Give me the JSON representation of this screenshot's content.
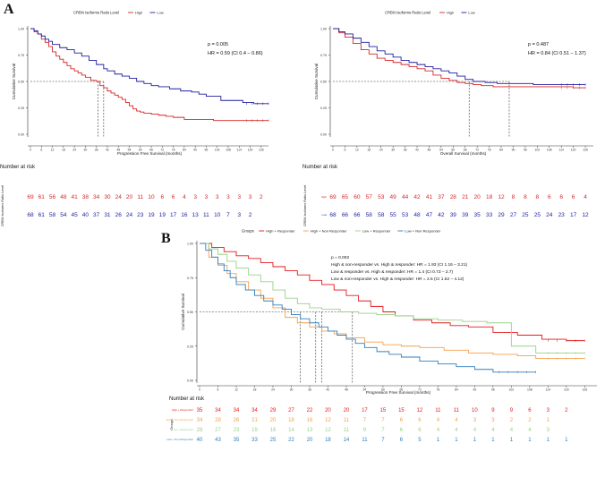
{
  "panels": {
    "a_letter": "A",
    "b_letter": "B"
  },
  "chart_data": [
    {
      "id": "A-left",
      "type": "line",
      "subtype": "kaplan-meier",
      "legend_title": "CRBN Isoforms Ratio Level",
      "legend_position": "top",
      "series": [
        {
          "name": "High",
          "color": "#d62728",
          "x": [
            0,
            2,
            4,
            6,
            8,
            10,
            12,
            14,
            16,
            18,
            20,
            22,
            24,
            26,
            28,
            30,
            33,
            36,
            38,
            40,
            42,
            44,
            46,
            48,
            50,
            52,
            54,
            56,
            58,
            60,
            62,
            66,
            70,
            74,
            78,
            84,
            90,
            100,
            110,
            120,
            126,
            130
          ],
          "y": [
            1.0,
            0.97,
            0.95,
            0.9,
            0.87,
            0.83,
            0.78,
            0.74,
            0.71,
            0.68,
            0.65,
            0.62,
            0.6,
            0.58,
            0.56,
            0.54,
            0.51,
            0.5,
            0.46,
            0.44,
            0.41,
            0.39,
            0.37,
            0.35,
            0.33,
            0.3,
            0.27,
            0.24,
            0.22,
            0.21,
            0.2,
            0.19,
            0.18,
            0.17,
            0.16,
            0.14,
            0.14,
            0.13,
            0.13,
            0.13,
            0.13,
            0.13
          ]
        },
        {
          "name": "Low",
          "color": "#1f1f9e",
          "x": [
            0,
            2,
            4,
            6,
            8,
            10,
            12,
            16,
            20,
            24,
            28,
            32,
            36,
            40,
            42,
            46,
            50,
            54,
            58,
            62,
            66,
            70,
            76,
            82,
            88,
            92,
            96,
            104,
            110,
            116,
            122,
            126,
            130
          ],
          "y": [
            1.0,
            0.98,
            0.95,
            0.93,
            0.9,
            0.88,
            0.85,
            0.82,
            0.8,
            0.77,
            0.74,
            0.7,
            0.66,
            0.62,
            0.6,
            0.57,
            0.55,
            0.53,
            0.5,
            0.48,
            0.46,
            0.45,
            0.43,
            0.41,
            0.4,
            0.38,
            0.36,
            0.32,
            0.32,
            0.3,
            0.29,
            0.29,
            0.29
          ]
        }
      ],
      "annotation": [
        "p = 0.005",
        "HR = 0.59 (CI 0.4 – 0.86)"
      ],
      "medians": [
        37,
        40
      ],
      "xlabel": "Progression Free Survival (months)",
      "ylabel": "Cumulative Survival",
      "xlim": [
        0,
        130
      ],
      "ylim": [
        0,
        1
      ],
      "xticks": [
        0,
        6,
        12,
        18,
        24,
        30,
        36,
        42,
        48,
        54,
        60,
        66,
        72,
        78,
        84,
        90,
        96,
        102,
        108,
        114,
        120,
        126
      ],
      "yticks": [
        "0.00",
        "0.25",
        "0.50",
        "0.75",
        "1.00"
      ],
      "risk_table_title": "Number at risk",
      "risk_ylabel": "CRBN Isoforms Ratio Level",
      "risk_rows": [
        {
          "label": "High",
          "color": "#d62728",
          "values": [
            "69",
            "61",
            "56",
            "48",
            "41",
            "38",
            "34",
            "30",
            "24",
            "20",
            "11",
            "10",
            "6",
            "6",
            "4",
            "3",
            "3",
            "3",
            "3",
            "3",
            "3",
            "2"
          ]
        },
        {
          "label": "Low",
          "color": "#1f1f9e",
          "values": [
            "68",
            "61",
            "58",
            "54",
            "45",
            "40",
            "37",
            "31",
            "26",
            "24",
            "23",
            "19",
            "19",
            "17",
            "16",
            "13",
            "11",
            "10",
            "7",
            "3",
            "2",
            ""
          ]
        }
      ]
    },
    {
      "id": "A-right",
      "type": "line",
      "subtype": "kaplan-meier",
      "legend_title": "CRBN Isoforms Ratio Level",
      "legend_position": "top",
      "series": [
        {
          "name": "High",
          "color": "#d62728",
          "x": [
            0,
            3,
            6,
            10,
            14,
            18,
            22,
            26,
            30,
            34,
            38,
            42,
            46,
            50,
            54,
            58,
            62,
            66,
            70,
            74,
            80,
            90,
            100,
            110,
            120,
            126
          ],
          "y": [
            1.0,
            0.96,
            0.92,
            0.86,
            0.8,
            0.76,
            0.72,
            0.7,
            0.68,
            0.66,
            0.64,
            0.62,
            0.6,
            0.56,
            0.53,
            0.51,
            0.49,
            0.48,
            0.47,
            0.46,
            0.45,
            0.45,
            0.45,
            0.45,
            0.44,
            0.44
          ]
        },
        {
          "name": "Low",
          "color": "#1f1f9e",
          "x": [
            0,
            3,
            6,
            10,
            14,
            18,
            22,
            26,
            30,
            34,
            38,
            42,
            46,
            50,
            54,
            58,
            62,
            66,
            70,
            76,
            82,
            88,
            94,
            100,
            110,
            120,
            126
          ],
          "y": [
            1.0,
            0.97,
            0.95,
            0.91,
            0.87,
            0.83,
            0.79,
            0.76,
            0.73,
            0.7,
            0.68,
            0.66,
            0.64,
            0.62,
            0.6,
            0.58,
            0.55,
            0.52,
            0.5,
            0.49,
            0.48,
            0.48,
            0.48,
            0.47,
            0.47,
            0.47,
            0.47
          ]
        }
      ],
      "annotation": [
        "p = 0.487",
        "HR = 0.84 (CI 0.51 – 1.37)"
      ],
      "medians": [
        68,
        88
      ],
      "xlabel": "Overall Survival (months)",
      "ylabel": "Cumulative Survival",
      "xlim": [
        0,
        130
      ],
      "ylim": [
        0,
        1
      ],
      "xticks": [
        0,
        6,
        12,
        18,
        24,
        30,
        36,
        42,
        48,
        54,
        60,
        66,
        72,
        78,
        84,
        90,
        96,
        102,
        108,
        114,
        120,
        126
      ],
      "yticks": [
        "0.00",
        "0.25",
        "0.50",
        "0.75",
        "1.00"
      ],
      "risk_table_title": "Number at risk",
      "risk_ylabel": "CRBN Isoforms Ratio Level",
      "risk_rows": [
        {
          "label": "High",
          "color": "#d62728",
          "values": [
            "69",
            "65",
            "60",
            "57",
            "53",
            "49",
            "44",
            "42",
            "41",
            "37",
            "28",
            "21",
            "20",
            "18",
            "12",
            "8",
            "8",
            "8",
            "6",
            "6",
            "6",
            "4"
          ]
        },
        {
          "label": "Low",
          "color": "#1f1f9e",
          "values": [
            "68",
            "66",
            "66",
            "58",
            "58",
            "55",
            "53",
            "48",
            "47",
            "42",
            "39",
            "39",
            "35",
            "33",
            "29",
            "27",
            "25",
            "25",
            "24",
            "23",
            "17",
            "12"
          ]
        }
      ]
    },
    {
      "id": "B",
      "type": "line",
      "subtype": "kaplan-meier",
      "legend_title": "Groups",
      "legend_position": "top",
      "series": [
        {
          "name": "High + Responder",
          "color": "#e31a1c",
          "x": [
            0,
            4,
            8,
            12,
            16,
            20,
            24,
            28,
            32,
            36,
            40,
            44,
            48,
            52,
            56,
            60,
            64,
            70,
            76,
            82,
            88,
            96,
            104,
            112,
            120,
            126
          ],
          "y": [
            1.0,
            0.97,
            0.94,
            0.91,
            0.89,
            0.86,
            0.83,
            0.8,
            0.77,
            0.73,
            0.7,
            0.66,
            0.62,
            0.58,
            0.54,
            0.5,
            0.47,
            0.44,
            0.42,
            0.4,
            0.39,
            0.35,
            0.33,
            0.3,
            0.29,
            0.29
          ]
        },
        {
          "name": "High + Non Responder",
          "color": "#f5a04a",
          "x": [
            0,
            3,
            6,
            9,
            12,
            16,
            20,
            24,
            28,
            32,
            36,
            40,
            44,
            48,
            54,
            60,
            66,
            72,
            80,
            88,
            96,
            104,
            110,
            120,
            126
          ],
          "y": [
            1.0,
            0.9,
            0.84,
            0.78,
            0.72,
            0.66,
            0.6,
            0.53,
            0.46,
            0.42,
            0.39,
            0.36,
            0.34,
            0.31,
            0.28,
            0.26,
            0.25,
            0.24,
            0.22,
            0.2,
            0.19,
            0.18,
            0.16,
            0.16,
            0.16
          ]
        },
        {
          "name": "Low + Responder",
          "color": "#9ad089",
          "x": [
            0,
            3,
            6,
            9,
            12,
            16,
            20,
            24,
            28,
            32,
            36,
            40,
            46,
            52,
            58,
            64,
            70,
            78,
            86,
            94,
            102,
            110,
            118,
            126
          ],
          "y": [
            1.0,
            0.96,
            0.92,
            0.87,
            0.82,
            0.77,
            0.72,
            0.66,
            0.6,
            0.56,
            0.53,
            0.52,
            0.5,
            0.49,
            0.48,
            0.47,
            0.45,
            0.44,
            0.43,
            0.42,
            0.25,
            0.2,
            0.2,
            0.2
          ]
        },
        {
          "name": "Low + Non Responder",
          "color": "#2f7fbf",
          "x": [
            0,
            2,
            4,
            6,
            8,
            10,
            12,
            15,
            18,
            21,
            24,
            27,
            30,
            33,
            36,
            39,
            42,
            45,
            48,
            51,
            54,
            58,
            62,
            66,
            72,
            78,
            84,
            90,
            96,
            104,
            110
          ],
          "y": [
            1.0,
            0.95,
            0.9,
            0.85,
            0.8,
            0.75,
            0.7,
            0.66,
            0.62,
            0.58,
            0.55,
            0.52,
            0.48,
            0.45,
            0.42,
            0.39,
            0.36,
            0.33,
            0.3,
            0.27,
            0.24,
            0.21,
            0.19,
            0.17,
            0.14,
            0.12,
            0.1,
            0.08,
            0.06,
            0.06,
            0.06
          ]
        }
      ],
      "annotation": [
        "p = 0.002",
        "High & non-responder vs. High & responder: HR = 1.93 (CI 1.16 – 3.21)",
        "Low & responder vs. High & responder: HR = 1.4 (CI 0.73 – 2.7)",
        "Low & non-responder vs. High & responder: HR = 2.5 (CI 1.52 – 4.12)"
      ],
      "medians": [
        33,
        38,
        40,
        50
      ],
      "xlabel": "Progression Free Survival (months)",
      "ylabel": "Cumulative Survival",
      "xlim": [
        0,
        130
      ],
      "ylim": [
        0,
        1
      ],
      "xticks": [
        0,
        6,
        12,
        18,
        24,
        30,
        36,
        42,
        48,
        54,
        60,
        66,
        72,
        78,
        84,
        90,
        96,
        102,
        108,
        114,
        120,
        126
      ],
      "yticks": [
        "0.00",
        "0.25",
        "0.50",
        "0.75",
        "1.00"
      ],
      "risk_table_title": "Number at risk",
      "risk_ylabel": "Groups",
      "risk_rows": [
        {
          "label": "High + Responder",
          "color": "#e31a1c",
          "values": [
            "35",
            "34",
            "34",
            "34",
            "29",
            "27",
            "22",
            "20",
            "20",
            "17",
            "15",
            "15",
            "12",
            "11",
            "11",
            "10",
            "9",
            "9",
            "6",
            "3",
            "2",
            ""
          ]
        },
        {
          "label": "High + Non Responder",
          "color": "#f5a04a",
          "values": [
            "34",
            "28",
            "26",
            "21",
            "20",
            "18",
            "16",
            "12",
            "11",
            "7",
            "7",
            "6",
            "6",
            "4",
            "4",
            "3",
            "3",
            "2",
            "2",
            "1",
            "",
            ""
          ]
        },
        {
          "label": "Low + Responder",
          "color": "#9ad089",
          "values": [
            "28",
            "27",
            "23",
            "19",
            "16",
            "14",
            "13",
            "12",
            "11",
            "9",
            "7",
            "6",
            "6",
            "4",
            "4",
            "4",
            "4",
            "4",
            "4",
            "3",
            "",
            ""
          ]
        },
        {
          "label": "Low + Non Responder",
          "color": "#2f7fbf",
          "values": [
            "40",
            "43",
            "35",
            "33",
            "25",
            "22",
            "20",
            "18",
            "14",
            "11",
            "7",
            "6",
            "5",
            "1",
            "1",
            "1",
            "1",
            "1",
            "1",
            "1",
            "1",
            ""
          ]
        }
      ]
    }
  ]
}
